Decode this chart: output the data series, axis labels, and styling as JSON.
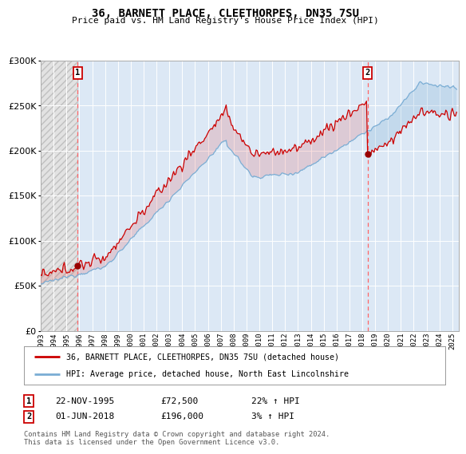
{
  "title1": "36, BARNETT PLACE, CLEETHORPES, DN35 7SU",
  "title2": "Price paid vs. HM Land Registry's House Price Index (HPI)",
  "legend_line1": "36, BARNETT PLACE, CLEETHORPES, DN35 7SU (detached house)",
  "legend_line2": "HPI: Average price, detached house, North East Lincolnshire",
  "annotation1": {
    "label": "1",
    "date": "22-NOV-1995",
    "price": "£72,500",
    "hpi": "22% ↑ HPI",
    "x_year": 1995.88,
    "y_val": 72500
  },
  "annotation2": {
    "label": "2",
    "date": "01-JUN-2018",
    "price": "£196,000",
    "hpi": "3% ↑ HPI",
    "x_year": 2018.42,
    "y_val": 196000
  },
  "footnote": "Contains HM Land Registry data © Crown copyright and database right 2024.\nThis data is licensed under the Open Government Licence v3.0.",
  "bg_color": "#dce8f5",
  "line_color_red": "#cc0000",
  "line_color_blue": "#7aadd4",
  "ylim": [
    0,
    300000
  ],
  "yticks": [
    0,
    50000,
    100000,
    150000,
    200000,
    250000,
    300000
  ],
  "xlim_start": 1993.0,
  "xlim_end": 2025.5,
  "hatch_end": 1995.88,
  "sale1_year": 1995.88,
  "sale1_price": 72500,
  "sale2_year": 2018.42,
  "sale2_price": 196000
}
